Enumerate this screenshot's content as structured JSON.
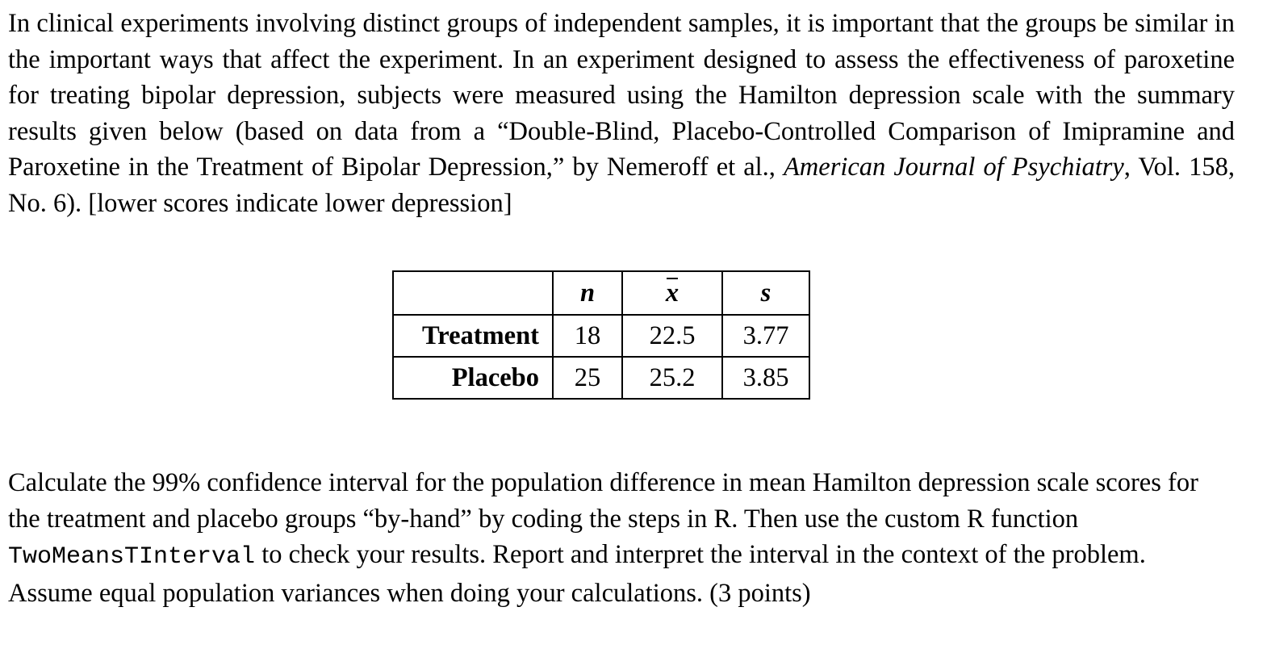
{
  "intro": {
    "text_before_journal": "In clinical experiments involving distinct groups of independent samples, it is important that the groups be similar in the important ways that affect the experiment. In an experiment designed to assess the effectiveness of paroxetine for treating bipolar depression, subjects were measured using the Hamilton depression scale with the summary results given below (based on data from a “Double-Blind, Placebo-Controlled Comparison of Imipramine and Paroxetine in the Treatment of Bipolar Depression,” by Nemeroff et al., ",
    "journal": "American Journal of Psychiatry",
    "text_after_journal": ", Vol. 158, No. 6). [lower scores indicate lower depression]"
  },
  "table": {
    "headers": {
      "n": "n",
      "xbar": "x",
      "s": "s"
    },
    "rows": [
      {
        "label": "Treatment",
        "n": "18",
        "xbar": "22.5",
        "s": "3.77"
      },
      {
        "label": "Placebo",
        "n": "25",
        "xbar": "25.2",
        "s": "3.85"
      }
    ]
  },
  "question": {
    "text_before_code": "Calculate the 99% confidence interval for the population difference in mean Hamilton depression scale scores for the treatment and placebo groups “by-hand” by coding the steps in R. Then use the custom R function ",
    "code": "TwoMeansTInterval",
    "text_after_code": " to check your results. Report and interpret the interval in the context of the problem. Assume equal population variances when doing your calculations. (3 points)"
  }
}
